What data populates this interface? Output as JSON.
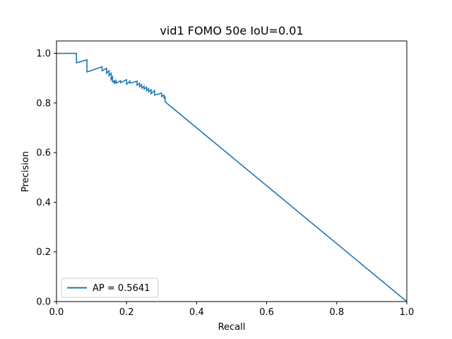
{
  "chart_data": {
    "type": "line",
    "title": "vid1 FOMO 50e IoU=0.01",
    "xlabel": "Recall",
    "ylabel": "Precision",
    "xlim": [
      0.0,
      1.0
    ],
    "ylim": [
      0.0,
      1.05
    ],
    "xticks": [
      "0.0",
      "0.2",
      "0.4",
      "0.6",
      "0.8",
      "1.0"
    ],
    "yticks": [
      "0.0",
      "0.2",
      "0.4",
      "0.6",
      "0.8",
      "1.0"
    ],
    "grid": false,
    "legend_position": "lower-left",
    "series": [
      {
        "name": "AP = 0.5641",
        "color": "#1f77b4",
        "x": [
          0.0,
          0.057,
          0.057,
          0.087,
          0.087,
          0.13,
          0.13,
          0.143,
          0.143,
          0.15,
          0.15,
          0.156,
          0.156,
          0.16,
          0.16,
          0.165,
          0.165,
          0.17,
          0.17,
          0.183,
          0.183,
          0.2,
          0.2,
          0.21,
          0.21,
          0.23,
          0.23,
          0.237,
          0.237,
          0.243,
          0.243,
          0.25,
          0.25,
          0.257,
          0.257,
          0.263,
          0.263,
          0.27,
          0.27,
          0.28,
          0.28,
          0.3,
          0.3,
          0.307,
          0.307,
          0.31,
          0.31,
          1.0
        ],
        "y": [
          1.0,
          1.0,
          0.962,
          0.974,
          0.925,
          0.946,
          0.93,
          0.94,
          0.92,
          0.93,
          0.91,
          0.92,
          0.895,
          0.905,
          0.885,
          0.89,
          0.88,
          0.89,
          0.88,
          0.89,
          0.882,
          0.894,
          0.876,
          0.888,
          0.88,
          0.888,
          0.872,
          0.88,
          0.866,
          0.874,
          0.86,
          0.868,
          0.856,
          0.864,
          0.85,
          0.858,
          0.845,
          0.853,
          0.838,
          0.85,
          0.832,
          0.84,
          0.826,
          0.832,
          0.82,
          0.824,
          0.805,
          0.0
        ]
      }
    ]
  }
}
